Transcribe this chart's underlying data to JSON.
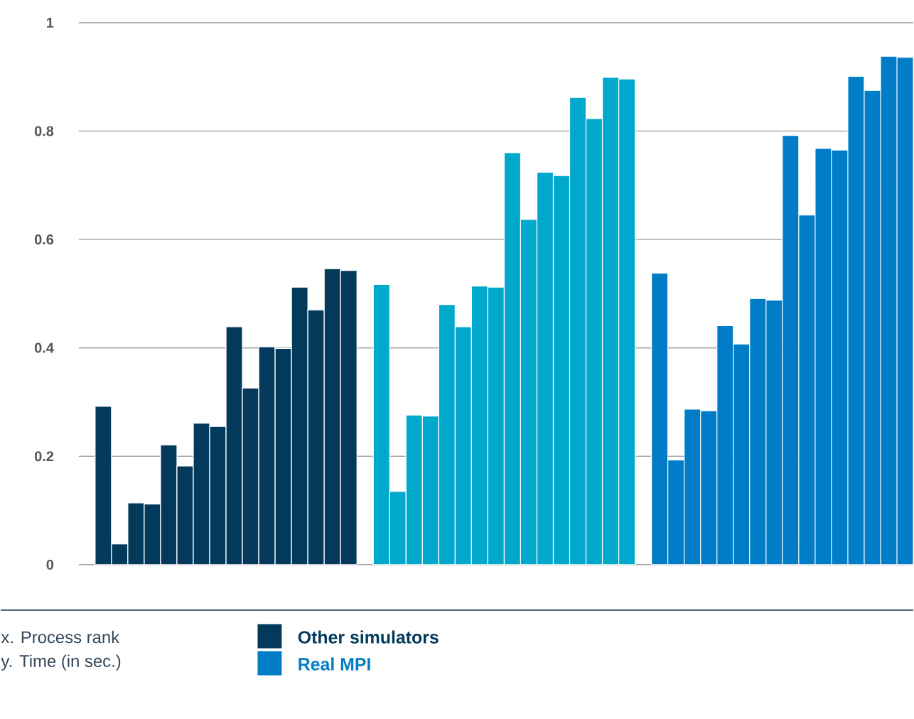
{
  "chart_data": {
    "type": "bar",
    "annotations": [
      "x. Process rank",
      "y. Time (in sec.)"
    ],
    "categories": [
      null,
      null,
      null,
      null,
      null,
      null,
      null,
      null,
      null,
      null,
      null,
      null,
      null,
      null,
      null,
      null,
      null,
      null,
      null,
      null,
      null,
      null,
      null,
      null,
      null,
      null,
      null,
      null,
      null,
      null,
      null,
      null,
      null,
      null,
      null,
      null,
      null,
      null,
      null,
      null,
      null,
      null,
      null,
      null,
      null,
      null,
      null,
      null,
      null,
      null,
      null
    ],
    "series": [
      {
        "name": "Other simulators",
        "color": "#033a5c",
        "values": [
          null,
          0.292,
          0.038,
          0.114,
          0.112,
          0.221,
          0.182,
          0.261,
          0.255,
          0.439,
          0.326,
          0.402,
          0.399,
          0.512,
          0.47,
          0.546,
          0.543,
          null,
          null,
          null,
          null,
          null,
          null,
          null,
          null,
          null,
          null,
          null,
          null,
          null,
          null,
          null,
          null,
          null,
          null,
          null,
          null,
          null,
          null,
          null,
          null,
          null,
          null,
          null,
          null,
          null,
          null,
          null,
          null,
          null,
          null
        ]
      },
      {
        "color": "#00a9cc",
        "values": [
          null,
          null,
          null,
          null,
          null,
          null,
          null,
          null,
          null,
          null,
          null,
          null,
          null,
          null,
          null,
          null,
          null,
          null,
          0.517,
          0.135,
          0.276,
          0.274,
          0.48,
          0.439,
          0.514,
          0.512,
          0.76,
          0.637,
          0.724,
          0.718,
          0.862,
          0.823,
          0.899,
          0.896,
          null,
          null,
          null,
          null,
          null,
          null,
          null,
          null,
          null,
          null,
          null,
          null,
          null,
          null,
          null,
          null,
          null
        ]
      },
      {
        "name": "Real MPI",
        "color": "#007dc6",
        "values": [
          null,
          null,
          null,
          null,
          null,
          null,
          null,
          null,
          null,
          null,
          null,
          null,
          null,
          null,
          null,
          null,
          null,
          null,
          null,
          null,
          null,
          null,
          null,
          null,
          null,
          null,
          null,
          null,
          null,
          null,
          null,
          null,
          null,
          null,
          null,
          0.538,
          0.193,
          0.287,
          0.284,
          0.441,
          0.407,
          0.491,
          0.488,
          0.792,
          0.645,
          0.768,
          0.765,
          0.901,
          0.875,
          0.938,
          0.936
        ]
      }
    ],
    "ylim": [
      0,
      1
    ],
    "yticks": [
      0,
      0.2,
      0.4,
      0.6,
      0.8,
      1
    ],
    "grid": "y",
    "legend": "bottom",
    "tick_labels": "y"
  }
}
